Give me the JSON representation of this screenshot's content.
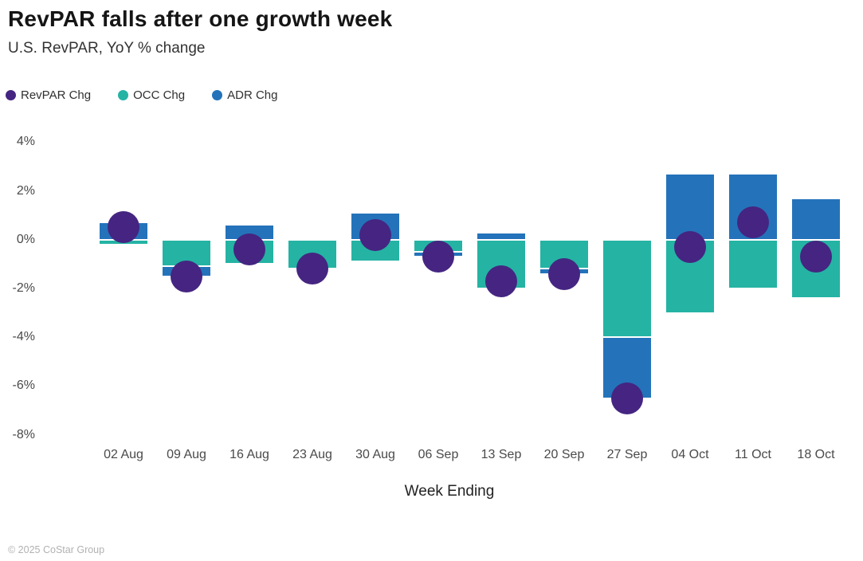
{
  "header": {
    "title": "RevPAR falls after one growth week",
    "subtitle": "U.S. RevPAR, YoY % change"
  },
  "legend": [
    {
      "label": "RevPAR Chg",
      "color": "#452581"
    },
    {
      "label": "OCC Chg",
      "color": "#25B3A4"
    },
    {
      "label": "ADR Chg",
      "color": "#2473BA"
    }
  ],
  "footer": {
    "copyright": "© 2025 CoStar Group"
  },
  "colors": {
    "revpar": "#452581",
    "occ": "#25B3A4",
    "adr": "#2473BA",
    "axis_text": "#4a4a4a",
    "title_text": "#151515",
    "footer_text": "#b2b2b2",
    "background": "#ffffff"
  },
  "chart_data": {
    "type": "bar",
    "subtype": "stacked columns (OCC + ADR) with scatter overlay (RevPAR)",
    "title": "RevPAR falls after one growth week",
    "subtitle": "U.S. RevPAR, YoY % change",
    "xlabel": "Week Ending",
    "ylabel": "",
    "categories": [
      "02 Aug",
      "09 Aug",
      "16 Aug",
      "23 Aug",
      "30 Aug",
      "06 Sep",
      "13 Sep",
      "20 Sep",
      "27 Sep",
      "04 Oct",
      "11 Oct",
      "18 Oct"
    ],
    "series": [
      {
        "name": "OCC Chg",
        "key": "occ",
        "type": "bar",
        "color": "#25B3A4",
        "values": [
          -0.2,
          -1.1,
          -1.0,
          -1.2,
          -0.9,
          -0.5,
          -2.0,
          -1.2,
          -4.0,
          -3.0,
          -2.0,
          -2.4
        ]
      },
      {
        "name": "ADR Chg",
        "key": "adr",
        "type": "bar",
        "color": "#2473BA",
        "values": [
          0.7,
          -0.4,
          0.6,
          0.0,
          1.1,
          -0.2,
          0.3,
          -0.2,
          -2.5,
          2.7,
          2.7,
          1.7
        ]
      },
      {
        "name": "RevPAR Chg",
        "key": "revpar",
        "type": "scatter",
        "color": "#452581",
        "values": [
          0.5,
          -1.5,
          -0.4,
          -1.2,
          0.2,
          -0.7,
          -1.7,
          -1.4,
          -6.5,
          -0.3,
          0.7,
          -0.7
        ]
      }
    ],
    "stacked": true,
    "grid": false,
    "legend_position": "top-left",
    "yticks": [
      4,
      2,
      0,
      -2,
      -4,
      -6,
      -8
    ],
    "ytick_labels": [
      "4%",
      "2%",
      "0%",
      "-2%",
      "-4%",
      "-6%",
      "-8%"
    ],
    "ylim": [
      -8.8,
      4.6
    ],
    "unit": "%"
  }
}
